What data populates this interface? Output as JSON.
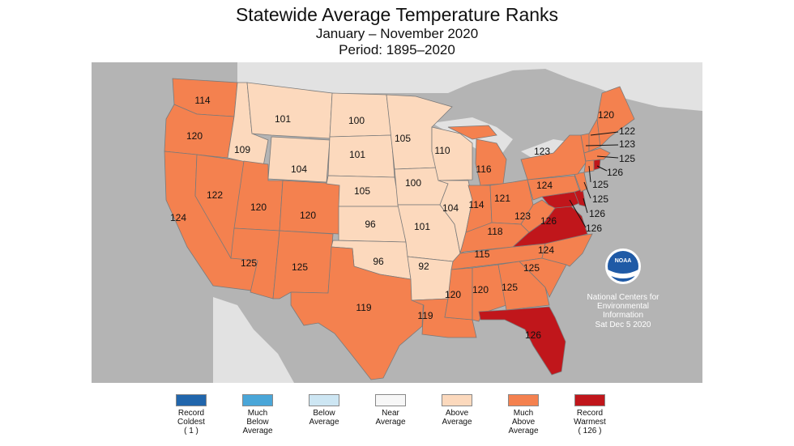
{
  "title": "Statewide Average Temperature Ranks",
  "subtitle": "January – November 2020",
  "period": "Period: 1895–2020",
  "colors": {
    "record_coldest": "#2166ac",
    "much_below": "#4aa6d8",
    "below": "#cde6f3",
    "near": "#f7f7f7",
    "above": "#fcd9bd",
    "much_above": "#f4814f",
    "record_warmest": "#c0161b",
    "land_bg": "#b4b4b4",
    "water": "#e2e2e2"
  },
  "legend": [
    {
      "label": "Record\nColdest\n( 1 )",
      "key": "record_coldest"
    },
    {
      "label": "Much\nBelow\nAverage",
      "key": "much_below"
    },
    {
      "label": "Below\nAverage",
      "key": "below"
    },
    {
      "label": "Near\nAverage",
      "key": "near"
    },
    {
      "label": "Above\nAverage",
      "key": "above"
    },
    {
      "label": "Much\nAbove\nAverage",
      "key": "much_above"
    },
    {
      "label": "Record\nWarmest\n( 126 )",
      "key": "record_warmest"
    }
  ],
  "credit": {
    "line1": "National Centers for",
    "line2": "Environmental",
    "line3": "Information",
    "date": "Sat Dec  5 2020",
    "logo_text": "NOAA"
  },
  "states": [
    {
      "code": "WA",
      "rank": 114,
      "category": "much_above"
    },
    {
      "code": "OR",
      "rank": 120,
      "category": "much_above"
    },
    {
      "code": "CA",
      "rank": 124,
      "category": "much_above"
    },
    {
      "code": "NV",
      "rank": 122,
      "category": "much_above"
    },
    {
      "code": "ID",
      "rank": 109,
      "category": "above"
    },
    {
      "code": "MT",
      "rank": 101,
      "category": "above"
    },
    {
      "code": "WY",
      "rank": 104,
      "category": "above"
    },
    {
      "code": "UT",
      "rank": 120,
      "category": "much_above"
    },
    {
      "code": "AZ",
      "rank": 125,
      "category": "much_above"
    },
    {
      "code": "CO",
      "rank": 120,
      "category": "much_above"
    },
    {
      "code": "NM",
      "rank": 125,
      "category": "much_above"
    },
    {
      "code": "ND",
      "rank": 100,
      "category": "above"
    },
    {
      "code": "SD",
      "rank": 101,
      "category": "above"
    },
    {
      "code": "NE",
      "rank": 105,
      "category": "above"
    },
    {
      "code": "KS",
      "rank": 96,
      "category": "above"
    },
    {
      "code": "OK",
      "rank": 96,
      "category": "above"
    },
    {
      "code": "TX",
      "rank": 119,
      "category": "much_above"
    },
    {
      "code": "MN",
      "rank": 105,
      "category": "above"
    },
    {
      "code": "IA",
      "rank": 100,
      "category": "above"
    },
    {
      "code": "MO",
      "rank": 101,
      "category": "above"
    },
    {
      "code": "AR",
      "rank": 92,
      "category": "above"
    },
    {
      "code": "LA",
      "rank": 119,
      "category": "much_above"
    },
    {
      "code": "WI",
      "rank": 110,
      "category": "above"
    },
    {
      "code": "IL",
      "rank": 104,
      "category": "above"
    },
    {
      "code": "MI",
      "rank": 116,
      "category": "much_above"
    },
    {
      "code": "IN",
      "rank": 114,
      "category": "much_above"
    },
    {
      "code": "OH",
      "rank": 121,
      "category": "much_above"
    },
    {
      "code": "KY",
      "rank": 118,
      "category": "much_above"
    },
    {
      "code": "TN",
      "rank": 115,
      "category": "much_above"
    },
    {
      "code": "MS",
      "rank": 120,
      "category": "much_above"
    },
    {
      "code": "AL",
      "rank": 120,
      "category": "much_above"
    },
    {
      "code": "GA",
      "rank": 125,
      "category": "much_above"
    },
    {
      "code": "FL",
      "rank": 126,
      "category": "record_warmest"
    },
    {
      "code": "SC",
      "rank": 125,
      "category": "much_above"
    },
    {
      "code": "NC",
      "rank": 124,
      "category": "much_above"
    },
    {
      "code": "VA",
      "rank": 126,
      "category": "record_warmest"
    },
    {
      "code": "WV",
      "rank": 123,
      "category": "much_above"
    },
    {
      "code": "PA",
      "rank": 124,
      "category": "much_above"
    },
    {
      "code": "NY",
      "rank": 123,
      "category": "much_above"
    },
    {
      "code": "ME",
      "rank": 120,
      "category": "much_above"
    },
    {
      "code": "NH",
      "rank": 122,
      "category": "much_above"
    },
    {
      "code": "VT",
      "rank": 123,
      "category": "much_above"
    },
    {
      "code": "MA",
      "rank": 125,
      "category": "much_above"
    },
    {
      "code": "RI",
      "rank": 126,
      "category": "record_warmest"
    },
    {
      "code": "CT",
      "rank": 125,
      "category": "much_above"
    },
    {
      "code": "NJ",
      "rank": 125,
      "category": "much_above"
    },
    {
      "code": "DE",
      "rank": 126,
      "category": "record_warmest"
    },
    {
      "code": "MD",
      "rank": 126,
      "category": "record_warmest"
    }
  ]
}
